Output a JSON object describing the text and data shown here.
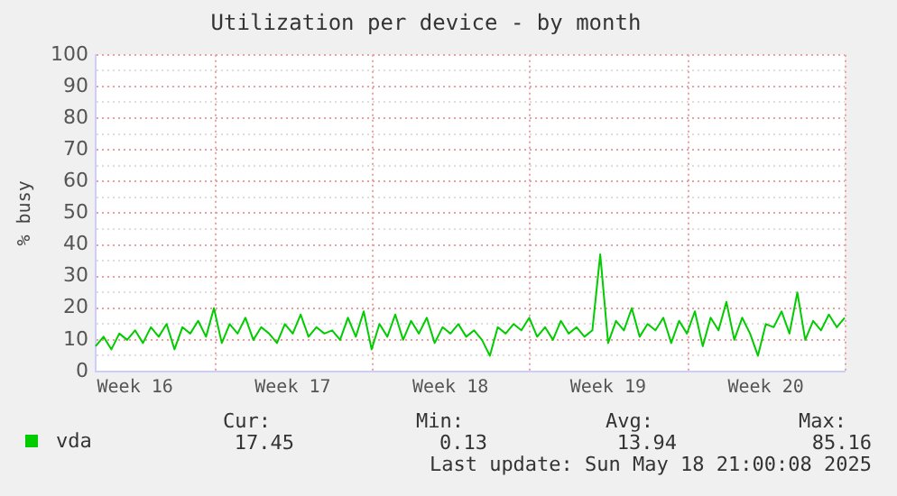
{
  "chart_data": {
    "type": "line",
    "title": "Utilization per device - by month",
    "ylabel": "% busy",
    "categories": [
      null,
      null,
      null,
      null,
      null,
      "Week 16",
      null,
      null,
      null,
      null,
      null,
      null,
      null,
      null,
      null,
      null,
      null,
      null,
      null,
      null,
      null,
      null,
      null,
      null,
      null,
      "Week 17",
      null,
      null,
      null,
      null,
      null,
      null,
      null,
      null,
      null,
      null,
      null,
      null,
      null,
      null,
      null,
      null,
      null,
      null,
      null,
      "Week 18",
      null,
      null,
      null,
      null,
      null,
      null,
      null,
      null,
      null,
      null,
      null,
      null,
      null,
      null,
      null,
      null,
      null,
      null,
      null,
      "Week 19",
      null,
      null,
      null,
      null,
      null,
      null,
      null,
      null,
      null,
      null,
      null,
      null,
      null,
      null,
      null,
      null,
      null,
      null,
      null,
      "Week 20",
      null,
      null,
      null,
      null,
      null,
      null,
      null,
      null,
      null,
      null
    ],
    "series": [
      {
        "name": "vda",
        "color": "#00cc00",
        "values": [
          8,
          11,
          7,
          12,
          10,
          13,
          9,
          14,
          11,
          15,
          7,
          14,
          12,
          16,
          11,
          20,
          9,
          15,
          12,
          17,
          10,
          14,
          12,
          9,
          15,
          12,
          18,
          11,
          14,
          12,
          13,
          10,
          17,
          11,
          19,
          7,
          15,
          11,
          18,
          10,
          16,
          12,
          17,
          9,
          14,
          12,
          15,
          11,
          13,
          10,
          5,
          14,
          12,
          15,
          13,
          17,
          11,
          14,
          10,
          16,
          12,
          14,
          11,
          13,
          37,
          9,
          16,
          13,
          20,
          11,
          15,
          13,
          17,
          9,
          16,
          12,
          19,
          8,
          17,
          13,
          22,
          10,
          17,
          12,
          5,
          15,
          14,
          19,
          12,
          25,
          10,
          16,
          13,
          18,
          14,
          17
        ]
      }
    ],
    "ylim": [
      0,
      100
    ],
    "yticks": [
      0,
      10,
      20,
      30,
      40,
      50,
      60,
      70,
      80,
      90,
      100,
      {
        "value": 5,
        "label": null
      },
      {
        "value": 15,
        "label": null
      },
      {
        "value": 25,
        "label": null
      },
      {
        "value": 35,
        "label": null
      },
      {
        "value": 45,
        "label": null
      },
      {
        "value": 55,
        "label": null
      },
      {
        "value": 65,
        "label": null
      },
      {
        "value": 75,
        "label": null
      },
      {
        "value": 85,
        "label": null
      },
      {
        "value": 95,
        "label": null
      }
    ],
    "grid": true,
    "legend": "bottom left",
    "marker": "none",
    "line_style": "solid",
    "annotations": [
      "Cur:",
      "Min:",
      "Avg:",
      "Max:",
      "17.45",
      "0.13",
      "13.94",
      "85.16",
      "Last update: Sun May 18 21:00:08 2025"
    ]
  }
}
